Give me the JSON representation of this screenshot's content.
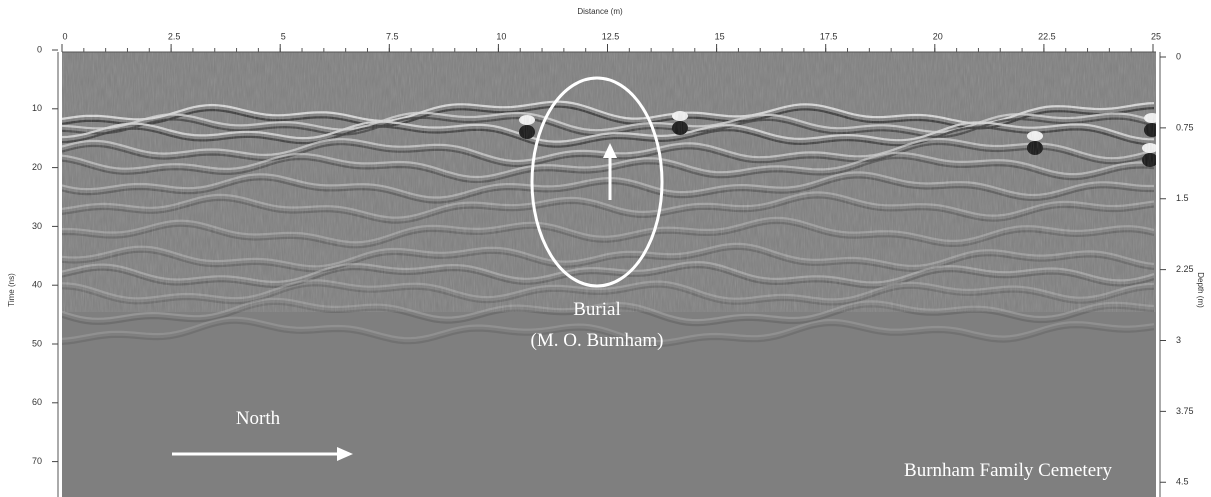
{
  "x_axis": {
    "label": "Distance (m)",
    "ticks": [
      0,
      2.5,
      5,
      7.5,
      10,
      12.5,
      15,
      17.5,
      20,
      22.5,
      25
    ]
  },
  "left_axis": {
    "label": "Time (ns)",
    "ticks": [
      0,
      10,
      20,
      30,
      40,
      50,
      60,
      70
    ]
  },
  "right_axis": {
    "label": "Depth (m)",
    "ticks": [
      0,
      0.75,
      1.5,
      2.25,
      3,
      3.75,
      4.5
    ]
  },
  "annotations": {
    "burial": [
      "Burial",
      "(M. O. Burnham)"
    ],
    "direction": "North",
    "site": "Burnham Family Cemetery"
  }
}
